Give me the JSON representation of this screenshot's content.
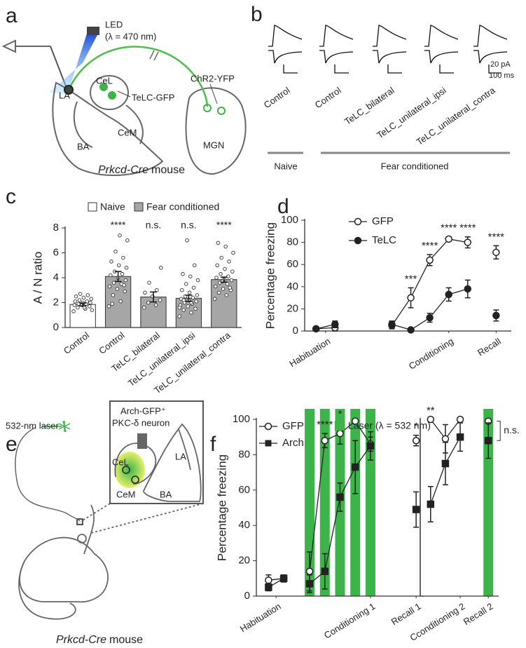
{
  "panel_labels": [
    "a",
    "b",
    "c",
    "d",
    "e",
    "f"
  ],
  "diagram_a": {
    "led": "LED",
    "wavelength": "(λ = 470 nm)",
    "la": "LA",
    "cel": "CeL",
    "cem": "CeM",
    "ba": "BA",
    "mgn": "MGN",
    "telc": "TeLC-GFP",
    "chr2": "ChR2-YFP",
    "caption_italic": "Prkcd-Cre",
    "caption_rest": "mouse"
  },
  "panel_b": {
    "scale_current": "20 pA",
    "scale_time": "100 ms",
    "groups": [
      "Control",
      "Control",
      "TeLC_bilateral",
      "TeLC_unilateral_ipsi",
      "TeLC_unilateral_contra"
    ],
    "conditions": [
      "Naive",
      "Fear conditioned"
    ]
  },
  "diagram_e": {
    "neuron_line1": "Arch-GFP⁺",
    "neuron_line2": "PKC-δ neuron",
    "laser": "532-nm laser",
    "cel": "CeL",
    "cem": "CeM",
    "la": "LA",
    "ba": "BA",
    "caption_italic": "Prkcd-Cre",
    "caption_rest": "mouse"
  },
  "chart_data": [
    {
      "type": "bar",
      "ylabel": "A / N ratio",
      "categories": [
        "Control",
        "Control",
        "TeLC_bilateral",
        "TeLC_unilateral_ipsi",
        "TeLC_unilateral_contra"
      ],
      "values": [
        1.85,
        4.1,
        2.45,
        2.35,
        3.85
      ],
      "errors": [
        0.12,
        0.4,
        0.4,
        0.25,
        0.2
      ],
      "colors": [
        "#ffffff",
        "#a6a6a6",
        "#a6a6a6",
        "#a6a6a6",
        "#a6a6a6"
      ],
      "annotations": [
        null,
        "****",
        "n.s.",
        "n.s.",
        "****"
      ],
      "points": [
        [
          1.3,
          1.5,
          1.6,
          1.7,
          1.8,
          1.8,
          1.9,
          1.9,
          2.0,
          2.0,
          2.1,
          2.1,
          2.2,
          2.3,
          2.4,
          2.5,
          2.6,
          2.7,
          1.4,
          1.6
        ],
        [
          1.7,
          2.1,
          2.6,
          2.9,
          3.1,
          3.3,
          3.5,
          3.6,
          3.8,
          4.0,
          4.2,
          4.3,
          4.5,
          4.8,
          5.0,
          5.3,
          5.6,
          6.1,
          7.0,
          7.4,
          1.9,
          3.4
        ],
        [
          1.6,
          1.8,
          2.0,
          2.2,
          2.5,
          2.8,
          3.0,
          3.6,
          4.8
        ],
        [
          0.9,
          1.2,
          1.4,
          1.5,
          1.7,
          1.8,
          1.9,
          2.0,
          2.1,
          2.2,
          2.3,
          2.4,
          2.5,
          2.6,
          2.8,
          3.0,
          3.2,
          3.5,
          3.8,
          4.1,
          4.3,
          5.0,
          7.0,
          1.6,
          2.0,
          2.2
        ],
        [
          2.3,
          2.6,
          2.8,
          3.0,
          3.1,
          3.3,
          3.5,
          3.6,
          3.8,
          3.9,
          4.0,
          4.1,
          4.3,
          4.5,
          4.7,
          5.0,
          5.3,
          5.6,
          6.0,
          6.5,
          6.8,
          3.2,
          3.7
        ]
      ],
      "legend": {
        "names": [
          "Naive",
          "Fear conditioned"
        ],
        "colors": [
          "#ffffff",
          "#a6a6a6"
        ]
      },
      "ylim": [
        0,
        8
      ],
      "yticks": [
        0,
        2,
        4,
        6,
        8
      ]
    },
    {
      "type": "line",
      "ylabel": "Percentage freezing",
      "x": [
        1,
        2,
        5,
        6,
        7,
        8,
        9,
        10.5
      ],
      "series": [
        {
          "name": "GFP",
          "color": "#222222",
          "marker": "open-circle",
          "values": [
            2,
            3,
            5,
            30,
            64,
            83,
            80,
            71
          ],
          "errors": [
            1.5,
            3,
            3,
            9,
            5,
            2,
            5,
            6
          ]
        },
        {
          "name": "TeLC",
          "color": "#222222",
          "marker": "filled-circle",
          "values": [
            2,
            6,
            6,
            1,
            12,
            33,
            38,
            14
          ],
          "errors": [
            1,
            3,
            3,
            1,
            4,
            6,
            8,
            5
          ]
        }
      ],
      "annotations": [
        {
          "x": 6,
          "text": "***"
        },
        {
          "x": 7,
          "text": "****"
        },
        {
          "x": 8,
          "text": "****"
        },
        {
          "x": 9,
          "text": "****"
        },
        {
          "x": 10.5,
          "text": "****"
        }
      ],
      "xlim": [
        0.4,
        11.3
      ],
      "xticks": [
        {
          "value": 1.5,
          "label": "Habituation"
        },
        {
          "value": 8,
          "label": "Conditioning"
        },
        {
          "value": 10.5,
          "label": "Recall"
        }
      ],
      "ylim": [
        0,
        100
      ],
      "yticks": [
        0,
        20,
        40,
        60,
        80,
        100
      ]
    },
    {
      "type": "line",
      "ylabel": "Percentage freezing",
      "x": [
        1,
        2,
        3.7,
        4.7,
        5.7,
        6.7,
        7.7,
        10.7
      ],
      "series": [
        {
          "name": "GFP",
          "color": "#222222",
          "marker": "open-circle",
          "values": [
            9,
            10,
            14,
            88,
            92,
            99,
            86,
            88
          ],
          "errors": [
            3,
            2,
            11,
            4,
            6,
            1,
            4,
            3
          ]
        },
        {
          "name": "Arch",
          "color": "#222222",
          "marker": "filled-square",
          "values": [
            5,
            10,
            7,
            14,
            56,
            73,
            85,
            49
          ],
          "errors": [
            2,
            2,
            5,
            10,
            8,
            15,
            8,
            10
          ]
        }
      ],
      "annotations": [
        {
          "x": 4.7,
          "text": "****"
        },
        {
          "x": 5.7,
          "text": "*"
        },
        {
          "x": 10.7,
          "text": "*"
        }
      ],
      "laser_label": "Laser (λ = 532 nm)",
      "laser_color": "#3cb44a",
      "laser_x": [
        3.7,
        4.7,
        5.7,
        6.7,
        7.7
      ],
      "xlim": [
        0.2,
        11.2
      ],
      "xticks": [
        {
          "value": 1.5,
          "label": "Habituation"
        },
        {
          "value": 7.7,
          "label": "Conditioning 1"
        },
        {
          "value": 10.7,
          "label": "Recall 1"
        }
      ],
      "ylim": [
        0,
        100
      ],
      "yticks": [
        0,
        20,
        40,
        60,
        80,
        100
      ]
    },
    {
      "type": "line",
      "x": [
        1,
        2,
        3,
        4.9
      ],
      "series": [
        {
          "name": "GFP",
          "color": "#222222",
          "marker": "open-circle",
          "values": [
            100,
            89,
            100,
            99
          ],
          "errors": [
            0,
            8,
            0,
            0
          ]
        },
        {
          "name": "Arch",
          "color": "#222222",
          "marker": "filled-square",
          "values": [
            52,
            75,
            90,
            88
          ],
          "errors": [
            10,
            12,
            8,
            10
          ]
        }
      ],
      "annotations": [
        {
          "x": 1,
          "text": "**"
        },
        {
          "x": 4.9,
          "text": "n.s.",
          "bracket": true
        }
      ],
      "laser_color": "#3cb44a",
      "laser_x": [
        4.9
      ],
      "xlim": [
        0.3,
        5.6
      ],
      "xticks": [
        {
          "value": 3,
          "label": "Cconditioning 2"
        },
        {
          "value": 4.9,
          "label": "Recall 2"
        }
      ],
      "ylim": [
        0,
        100
      ]
    }
  ]
}
